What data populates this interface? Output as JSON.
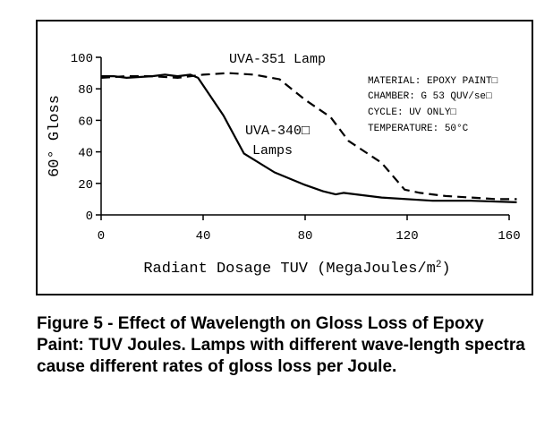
{
  "chart_data": {
    "type": "line",
    "title": "",
    "xlabel": "Radiant Dosage TUV (MegaJoules/m",
    "xlabel_superscript": "2",
    "xlabel_close": ")",
    "ylabel": "60° Gloss",
    "xlim": [
      0,
      160
    ],
    "ylim": [
      0,
      100
    ],
    "xticks": [
      0,
      40,
      80,
      120,
      160
    ],
    "yticks": [
      0,
      20,
      40,
      60,
      80,
      100
    ],
    "grid": false,
    "legend": "inline labels",
    "series": [
      {
        "name": "UVA-340 Lamps",
        "label_line1": "UVA-340□",
        "label_line2": "Lamps",
        "style": "solid",
        "x": [
          0,
          5,
          10,
          20,
          25,
          30,
          35,
          38,
          48,
          56,
          68,
          80,
          87,
          92,
          95,
          110,
          130,
          145,
          163
        ],
        "y": [
          88,
          88,
          87,
          88,
          89,
          88,
          89,
          87,
          63,
          39,
          27,
          19,
          15,
          13,
          14,
          11,
          9,
          9,
          8
        ]
      },
      {
        "name": "UVA-351 Lamp",
        "label_line1": "UVA-351 Lamp",
        "style": "dashed",
        "x": [
          0,
          10,
          20,
          30,
          40,
          50,
          60,
          70,
          80,
          90,
          97,
          110,
          119,
          125,
          135,
          145,
          155,
          163
        ],
        "y": [
          87,
          88,
          88,
          87,
          89,
          90,
          89,
          86,
          73,
          62,
          47,
          33,
          16,
          14,
          12,
          11,
          10,
          10
        ]
      }
    ],
    "annotations": [
      "MATERIAL: EPOXY PAINT□",
      "CHAMBER: G 53 QUV/se□",
      "CYCLE: UV ONLY□",
      "TEMPERATURE: 50°C"
    ]
  },
  "caption": "Figure 5 - Effect of Wavelength on Gloss Loss of Epoxy Paint: TUV Joules. Lamps with different wave-length spectra cause different rates of gloss loss per Joule."
}
